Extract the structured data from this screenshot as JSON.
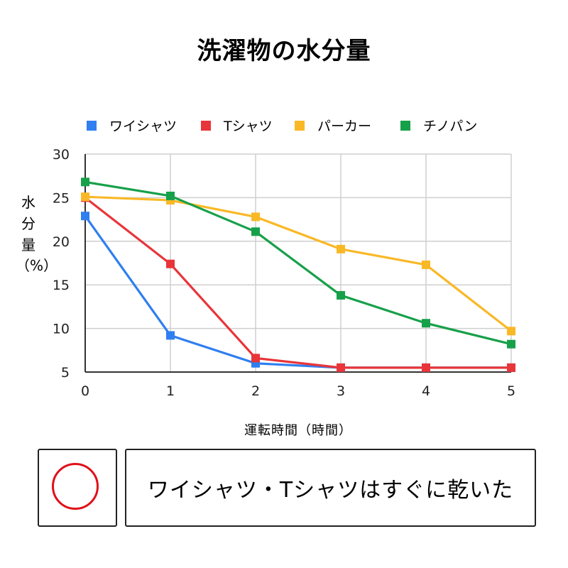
{
  "chart_data": {
    "type": "line",
    "title": "洗濯物の水分量",
    "xlabel": "運転時間（時間）",
    "ylabel": "水分量（%）",
    "x": [
      0,
      1,
      2,
      3,
      4,
      5
    ],
    "xticks": [
      "0",
      "1",
      "2",
      "3",
      "4",
      "5"
    ],
    "yticks": [
      "5",
      "10",
      "15",
      "20",
      "25",
      "30"
    ],
    "ylim": [
      5,
      30
    ],
    "grid": true,
    "legend_position": "top",
    "series": [
      {
        "name": "ワイシャツ",
        "color": "#2f7ff0",
        "values": [
          22.9,
          9.2,
          6.0,
          5.5,
          5.5,
          5.5
        ]
      },
      {
        "name": "Tシャツ",
        "color": "#e8353a",
        "values": [
          25.0,
          17.4,
          6.6,
          5.5,
          5.5,
          5.5
        ]
      },
      {
        "name": "パーカー",
        "color": "#f9b826",
        "values": [
          25.1,
          24.7,
          22.8,
          19.1,
          17.3,
          9.7
        ]
      },
      {
        "name": "チノパン",
        "color": "#17a04a",
        "values": [
          26.8,
          25.2,
          21.1,
          13.8,
          10.6,
          8.2
        ]
      }
    ]
  },
  "result": {
    "mark": "circle",
    "mark_color": "#e0101a",
    "text": "ワイシャツ・Tシャツはすぐに乾いた"
  },
  "ylabel_parts": {
    "main": "水分量",
    "paren": "（%）"
  }
}
